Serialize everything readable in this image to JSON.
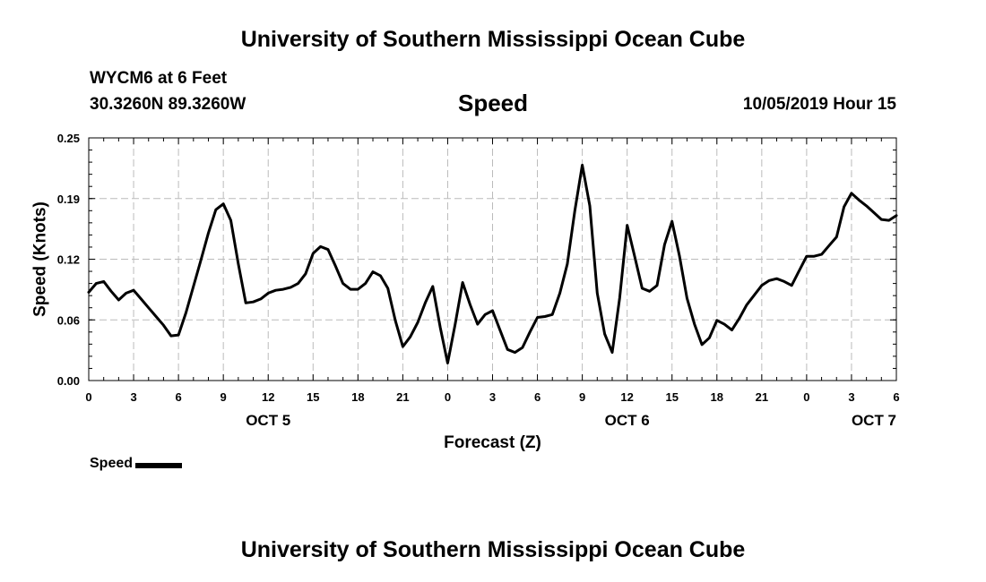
{
  "header": {
    "title": "University of Southern Mississippi Ocean Cube",
    "station": "WYCM6 at 6 Feet",
    "coords": "30.3260N 89.3260W",
    "datetime": "10/05/2019 Hour 15"
  },
  "footer": {
    "title": "University of Southern Mississippi Ocean Cube"
  },
  "chart_data": {
    "type": "line",
    "title": "Speed",
    "xlabel": "Forecast (Z)",
    "ylabel": "Speed (Knots)",
    "ylim": [
      0,
      0.25
    ],
    "yticks": [
      "0.00",
      "0.06",
      "0.12",
      "0.19",
      "0.25"
    ],
    "xlim": [
      0,
      54
    ],
    "xtick_labels": [
      "0",
      "3",
      "6",
      "9",
      "12",
      "15",
      "18",
      "21",
      "0",
      "3",
      "6",
      "9",
      "12",
      "15",
      "18",
      "21",
      "0",
      "3",
      "6"
    ],
    "day_labels": [
      {
        "label": "OCT 5",
        "hour": 12
      },
      {
        "label": "OCT 6",
        "hour": 36
      },
      {
        "label": "OCT 7",
        "hour": 52.5
      }
    ],
    "grid": true,
    "legend_position": "bottom-left",
    "series": [
      {
        "name": "Speed",
        "color": "#000000",
        "x": [
          0,
          0.5,
          1,
          1.5,
          2,
          2.5,
          3,
          3.5,
          4,
          4.5,
          5,
          5.5,
          6,
          6.5,
          7,
          7.5,
          8,
          8.5,
          9,
          9.5,
          10,
          10.5,
          11,
          11.5,
          12,
          12.5,
          13,
          13.5,
          14,
          14.5,
          15,
          15.5,
          16,
          16.5,
          17,
          17.5,
          18,
          18.5,
          19,
          19.5,
          20,
          20.5,
          21,
          21.5,
          22,
          22.5,
          23,
          23.5,
          24,
          24.5,
          25,
          25.5,
          26,
          26.5,
          27,
          27.5,
          28,
          28.5,
          29,
          29.5,
          30,
          30.5,
          31,
          31.5,
          32,
          32.5,
          33,
          33.5,
          34,
          34.5,
          35,
          35.5,
          36,
          36.5,
          37,
          37.5,
          38,
          38.5,
          39,
          39.5,
          40,
          40.5,
          41,
          41.5,
          42,
          42.5,
          43,
          43.5,
          44,
          44.5,
          45,
          45.5,
          46,
          46.5,
          47,
          47.5,
          48,
          48.5,
          49,
          49.5,
          50,
          50.5,
          51,
          51.5,
          52,
          52.5,
          53,
          53.5,
          54
        ],
        "y": [
          0.091,
          0.1,
          0.102,
          0.092,
          0.083,
          0.09,
          0.093,
          0.084,
          0.075,
          0.066,
          0.057,
          0.046,
          0.047,
          0.07,
          0.097,
          0.124,
          0.152,
          0.176,
          0.182,
          0.165,
          0.12,
          0.08,
          0.081,
          0.084,
          0.09,
          0.093,
          0.094,
          0.096,
          0.1,
          0.11,
          0.131,
          0.138,
          0.135,
          0.118,
          0.1,
          0.094,
          0.094,
          0.1,
          0.112,
          0.108,
          0.095,
          0.062,
          0.035,
          0.045,
          0.06,
          0.08,
          0.097,
          0.055,
          0.018,
          0.058,
          0.101,
          0.078,
          0.058,
          0.068,
          0.072,
          0.052,
          0.032,
          0.029,
          0.034,
          0.05,
          0.065,
          0.066,
          0.068,
          0.09,
          0.12,
          0.175,
          0.222,
          0.18,
          0.09,
          0.048,
          0.029,
          0.085,
          0.16,
          0.128,
          0.095,
          0.092,
          0.098,
          0.14,
          0.164,
          0.128,
          0.085,
          0.058,
          0.037,
          0.044,
          0.062,
          0.058,
          0.052,
          0.064,
          0.078,
          0.088,
          0.098,
          0.103,
          0.105,
          0.102,
          0.098,
          0.113,
          0.128,
          0.128,
          0.13,
          0.139,
          0.148,
          0.179,
          0.193,
          0.186,
          0.18,
          0.173,
          0.166,
          0.165,
          0.17
        ]
      }
    ]
  }
}
